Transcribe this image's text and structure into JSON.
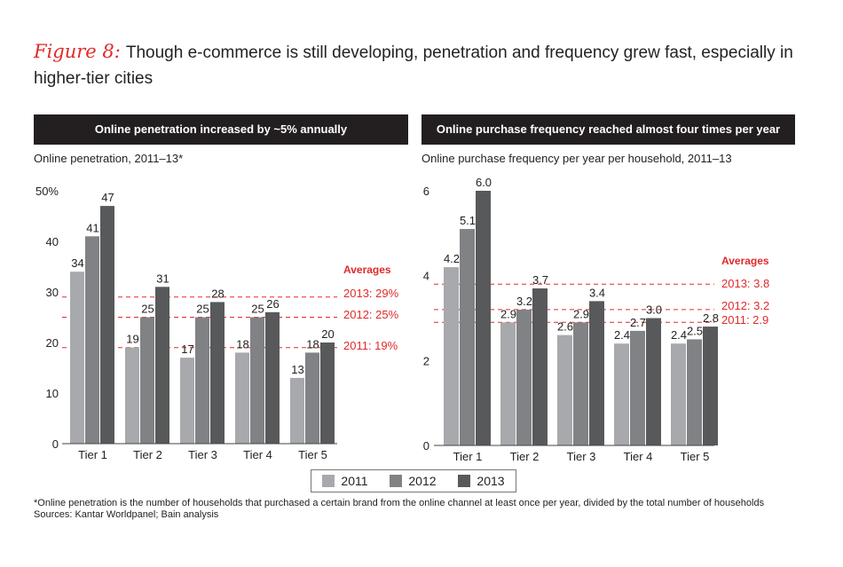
{
  "figure": {
    "label": "Figure 8:",
    "title": "Though e-commerce is still developing, penetration and frequency grew fast, especially in higher-tier cities"
  },
  "colors": {
    "s2011": "#a7a9ac",
    "s2012": "#808285",
    "s2013": "#58595b",
    "accent": "#e02a2a",
    "header": "#231f20"
  },
  "legend": [
    "2011",
    "2012",
    "2013"
  ],
  "footnote": "*Online penetration is the number of households that purchased a certain brand from the online channel at least once per year, divided by the total number of households",
  "sources": "Sources: Kantar Worldpanel; Bain analysis",
  "chart_data": [
    {
      "type": "bar",
      "header": "Online penetration increased by ~5% annually",
      "subtitle": "Online penetration, 2011–13*",
      "categories": [
        "Tier 1",
        "Tier 2",
        "Tier 3",
        "Tier 4",
        "Tier 5"
      ],
      "series": [
        {
          "name": "2011",
          "values": [
            34,
            19,
            17,
            18,
            13
          ]
        },
        {
          "name": "2012",
          "values": [
            41,
            25,
            25,
            25,
            18
          ]
        },
        {
          "name": "2013",
          "values": [
            47,
            31,
            28,
            26,
            20
          ]
        }
      ],
      "ylim": [
        0,
        50
      ],
      "yticks": [
        0,
        10,
        20,
        30,
        40,
        50
      ],
      "ytick_labels": [
        "0",
        "10",
        "20",
        "30",
        "40",
        "50%"
      ],
      "averages_title": "Averages",
      "averages": [
        {
          "value": 29,
          "label": "2013: 29%"
        },
        {
          "value": 25,
          "label": "2012: 25%"
        },
        {
          "value": 19,
          "label": "2011: 19%"
        }
      ]
    },
    {
      "type": "bar",
      "header": "Online purchase frequency reached almost four times per year",
      "subtitle": "Online purchase frequency per year per household, 2011–13",
      "categories": [
        "Tier 1",
        "Tier 2",
        "Tier 3",
        "Tier 4",
        "Tier 5"
      ],
      "series": [
        {
          "name": "2011",
          "values": [
            4.2,
            2.9,
            2.6,
            2.4,
            2.4
          ]
        },
        {
          "name": "2012",
          "values": [
            5.1,
            3.2,
            2.9,
            2.7,
            2.5
          ]
        },
        {
          "name": "2013",
          "values": [
            6.0,
            3.7,
            3.4,
            3.0,
            2.8
          ]
        }
      ],
      "ylim": [
        0,
        6
      ],
      "yticks": [
        0,
        2,
        4,
        6
      ],
      "ytick_labels": [
        "0",
        "2",
        "4",
        "6"
      ],
      "averages_title": "Averages",
      "averages": [
        {
          "value": 3.8,
          "label": "2013: 3.8"
        },
        {
          "value": 3.2,
          "label": "2012: 3.2"
        },
        {
          "value": 2.9,
          "label": "2011: 2.9"
        }
      ]
    }
  ]
}
